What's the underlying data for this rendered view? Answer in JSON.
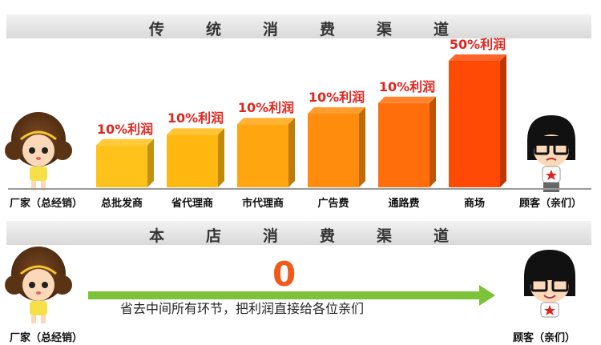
{
  "section1": {
    "title_chars": [
      "传",
      "统",
      "消",
      "费",
      "渠",
      "道"
    ]
  },
  "section2": {
    "title_chars": [
      "本",
      "店",
      "消",
      "费",
      "渠",
      "道"
    ]
  },
  "channels": [
    {
      "label": "总批发商",
      "profit": "10%利润",
      "color": "#ffc21a",
      "level": 0.2
    },
    {
      "label": "省代理商",
      "profit": "10%利润",
      "color": "#ffb810",
      "level": 0.3
    },
    {
      "label": "市代理商",
      "profit": "10%利润",
      "color": "#ffa510",
      "level": 0.4
    },
    {
      "label": "广告费",
      "profit": "10%利润",
      "color": "#ff8c0c",
      "level": 0.5
    },
    {
      "label": "通路费",
      "profit": "10%利润",
      "color": "#ff6e0a",
      "level": 0.6
    },
    {
      "label": "商场",
      "profit": "50%利润",
      "color": "#ff4a05",
      "level": 1.0
    }
  ],
  "manufacturer_label": "厂家（总经销）",
  "customer_label": "顾客（亲们）",
  "direct": {
    "zero": "0",
    "note": "省去中间所有环节，把利润直接给各位亲们"
  },
  "arrow_color": "#7cc33a"
}
